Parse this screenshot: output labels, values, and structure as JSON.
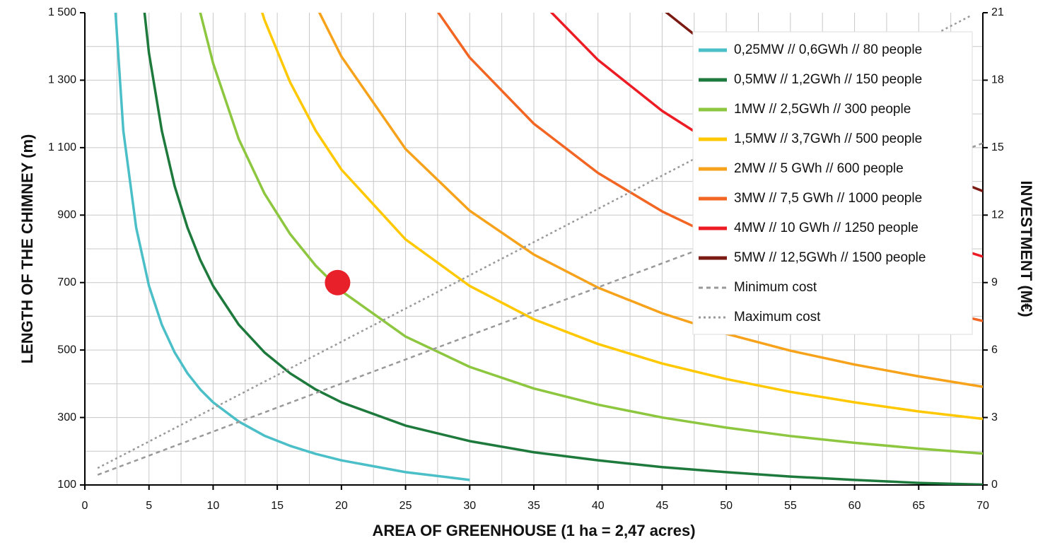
{
  "chart_data": {
    "type": "line",
    "xlabel": "AREA OF GREENHOUSE (1 ha = 2,47 acres)",
    "ylabel": "LENGTH OF THE CHIMNEY (m)",
    "y2label": "INVESTMENT (M€)",
    "x": [
      1,
      2,
      3,
      4,
      5,
      6,
      7,
      8,
      9,
      10,
      12,
      14,
      16,
      18,
      20,
      25,
      30,
      35,
      40,
      45,
      50,
      55,
      60,
      65,
      70
    ],
    "xlim": [
      0,
      70
    ],
    "xticks": [
      0,
      5,
      10,
      15,
      20,
      25,
      30,
      35,
      40,
      45,
      50,
      55,
      60,
      65,
      70
    ],
    "ylim": [
      100,
      1500
    ],
    "yticks": [
      100,
      300,
      500,
      700,
      900,
      {
        "value": 1100,
        "label": "1 100"
      },
      {
        "value": 1300,
        "label": "1 300"
      },
      {
        "value": 1500,
        "label": "1 500"
      }
    ],
    "y2lim": [
      0,
      21
    ],
    "y2ticks": [
      0,
      3,
      6,
      9,
      12,
      15,
      18,
      21
    ],
    "grid": true,
    "grid_x_step": 2.5,
    "grid_y_step": 100,
    "legend": "upper right",
    "series": [
      {
        "name": "0,25MW // 0,6GWh // 80 people",
        "color": "#4bbfc8",
        "values": [
          null,
          1725,
          1150,
          863,
          690,
          575,
          493,
          431,
          383,
          345,
          288,
          246,
          216,
          192,
          173,
          138,
          115,
          null,
          null,
          null,
          null,
          null,
          null,
          null,
          null
        ]
      },
      {
        "name": "0,5MW // 1,2GWh // 150 people",
        "color": "#1e7a3c",
        "values": [
          null,
          null,
          null,
          1725,
          1380,
          1150,
          986,
          863,
          767,
          690,
          575,
          493,
          431,
          383,
          345,
          276,
          230,
          197,
          173,
          153,
          138,
          125,
          115,
          106,
          101
        ]
      },
      {
        "name": "1MW // 2,5GWh // 300 people",
        "color": "#8dc63f",
        "values": [
          null,
          null,
          null,
          null,
          null,
          null,
          null,
          1688,
          1500,
          1350,
          1125,
          964,
          844,
          750,
          675,
          540,
          450,
          386,
          338,
          300,
          270,
          245,
          225,
          208,
          193
        ]
      },
      {
        "name": "1,5MW // 3,7GWh // 500 people",
        "color": "#ffc800",
        "values": [
          null,
          null,
          null,
          null,
          null,
          null,
          null,
          null,
          null,
          null,
          1725,
          1479,
          1294,
          1150,
          1035,
          828,
          690,
          591,
          518,
          460,
          414,
          376,
          345,
          318,
          296
        ]
      },
      {
        "name": "2MW // 5 GWh // 600 people",
        "color": "#f7a21b",
        "values": [
          null,
          null,
          null,
          null,
          null,
          null,
          null,
          null,
          null,
          null,
          null,
          null,
          null,
          1522,
          1370,
          1096,
          913,
          783,
          685,
          609,
          548,
          498,
          457,
          422,
          391
        ]
      },
      {
        "name": "3MW // 7,5 GWh // 1000 people",
        "color": "#f26522",
        "values": [
          null,
          null,
          null,
          null,
          null,
          null,
          null,
          null,
          null,
          null,
          null,
          null,
          null,
          null,
          null,
          1640,
          1367,
          1171,
          1025,
          911,
          820,
          745,
          683,
          631,
          586
        ]
      },
      {
        "name": "4MW // 10 GWh // 1250 people",
        "color": "#ed1c24",
        "values": [
          null,
          null,
          null,
          null,
          null,
          null,
          null,
          null,
          null,
          null,
          null,
          null,
          null,
          null,
          null,
          null,
          null,
          1554,
          1360,
          1209,
          1088,
          989,
          907,
          837,
          777
        ]
      },
      {
        "name": "5MW // 12,5GWh // 1500 people",
        "color": "#7a1a12",
        "values": [
          null,
          null,
          null,
          null,
          null,
          null,
          null,
          null,
          null,
          null,
          null,
          null,
          null,
          null,
          null,
          null,
          null,
          null,
          null,
          1511,
          1360,
          1236,
          1133,
          1046,
          971
        ]
      },
      {
        "name": "Minimum cost",
        "color": "#999999",
        "axis": "y2",
        "dash": "6 5",
        "x": [
          1,
          70
        ],
        "values": [
          0.45,
          15.2
        ]
      },
      {
        "name": "Maximum cost",
        "color": "#999999",
        "axis": "y2",
        "dash": "3 4",
        "x": [
          1,
          69
        ],
        "values": [
          0.75,
          20.85
        ]
      }
    ],
    "highlight": {
      "x": 19.7,
      "y": 700,
      "color": "#e8202a"
    }
  }
}
